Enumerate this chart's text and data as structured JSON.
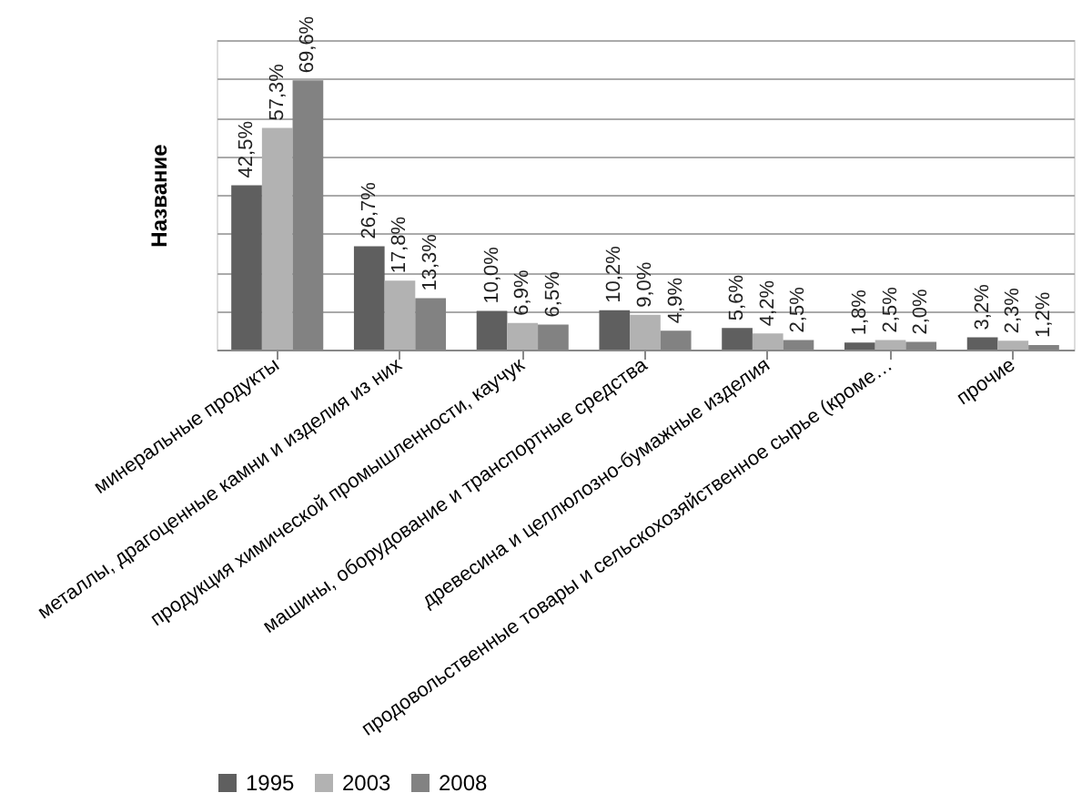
{
  "chart_data": {
    "type": "bar",
    "ylabel": "Название",
    "categories": [
      "минеральные продукты",
      "металлы, драгоценные камни и изделия из них",
      "продукция химической промышленности, каучук",
      "машины, оборудование и транспортные средства",
      "древесина и целлюлозно-бумажные изделия",
      "продовольственные товары и сельскохозяйственное сырье (кроме…",
      "прочие"
    ],
    "series": [
      {
        "name": "1995",
        "color": "#5f5f5f",
        "values": [
          42.5,
          26.7,
          10.0,
          10.2,
          5.6,
          1.8,
          3.2
        ],
        "value_labels": [
          "42,5%",
          "26,7%",
          "10,0%",
          "10,2%",
          "5,6%",
          "1,8%",
          "3,2%"
        ]
      },
      {
        "name": "2003",
        "color": "#b2b2b2",
        "values": [
          57.3,
          17.8,
          6.9,
          9.0,
          4.2,
          2.5,
          2.3
        ],
        "value_labels": [
          "57,3%",
          "17,8%",
          "6,9%",
          "9,0%",
          "4,2%",
          "2,5%",
          "2,3%"
        ]
      },
      {
        "name": "2008",
        "color": "#828282",
        "values": [
          69.6,
          13.3,
          6.5,
          4.9,
          2.5,
          2.0,
          1.2
        ],
        "value_labels": [
          "69,6%",
          "13,3%",
          "6,5%",
          "4,9%",
          "2,5%",
          "2,0%",
          "1,2%"
        ]
      }
    ],
    "ylim": [
      0,
      80
    ],
    "grid": "y",
    "tick_labels": "x",
    "legend": "bottom"
  }
}
